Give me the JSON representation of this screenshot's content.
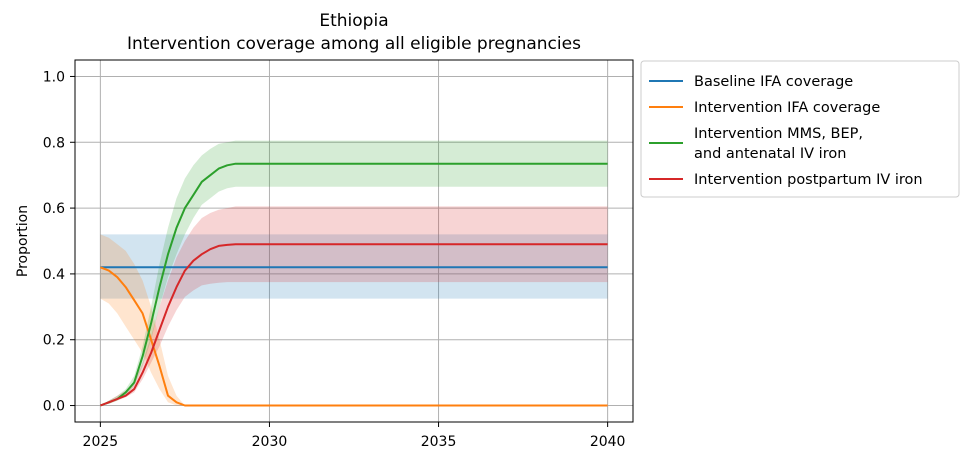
{
  "chart_data": {
    "type": "line",
    "title": "Ethiopia",
    "subtitle": "Intervention coverage among all eligible pregnancies",
    "xlabel": "",
    "ylabel": "Proportion",
    "xlim": [
      2024.25,
      2040.75
    ],
    "ylim": [
      -0.05,
      1.05
    ],
    "xticks": [
      2025,
      2030,
      2035,
      2040
    ],
    "yticks": [
      0.0,
      0.2,
      0.4,
      0.6,
      0.8,
      1.0
    ],
    "xtick_labels": [
      "2025",
      "2030",
      "2035",
      "2040"
    ],
    "ytick_labels": [
      "0.0",
      "0.2",
      "0.4",
      "0.6",
      "0.8",
      "1.0"
    ],
    "grid": true,
    "legend_position": "outside-right-top",
    "series": [
      {
        "name": "Baseline IFA coverage",
        "legend_lines": [
          "Baseline IFA coverage"
        ],
        "color": "#1f77b4",
        "x": [
          2025,
          2040
        ],
        "y": [
          0.42,
          0.42
        ],
        "lower": [
          0.325,
          0.325
        ],
        "upper": [
          0.52,
          0.52
        ]
      },
      {
        "name": "Intervention IFA coverage",
        "legend_lines": [
          "Intervention IFA coverage"
        ],
        "color": "#ff7f0e",
        "x": [
          2025,
          2025.25,
          2025.5,
          2025.75,
          2026,
          2026.25,
          2026.5,
          2026.75,
          2027,
          2027.25,
          2027.5,
          2040
        ],
        "y": [
          0.42,
          0.41,
          0.39,
          0.36,
          0.32,
          0.28,
          0.2,
          0.12,
          0.03,
          0.01,
          0.0,
          0.0
        ],
        "lower": [
          0.325,
          0.31,
          0.28,
          0.24,
          0.2,
          0.16,
          0.1,
          0.05,
          0.01,
          0.0,
          0.0,
          0.0
        ],
        "upper": [
          0.52,
          0.51,
          0.49,
          0.47,
          0.43,
          0.38,
          0.3,
          0.2,
          0.09,
          0.03,
          0.0,
          0.0
        ]
      },
      {
        "name": "Intervention MMS, BEP, and antenatal IV iron",
        "legend_lines": [
          "Intervention MMS, BEP,",
          "and antenatal IV iron"
        ],
        "color": "#2ca02c",
        "x": [
          2025,
          2025.25,
          2025.5,
          2025.75,
          2026,
          2026.25,
          2026.5,
          2026.75,
          2027,
          2027.25,
          2027.5,
          2027.75,
          2028,
          2028.25,
          2028.5,
          2028.75,
          2029,
          2040
        ],
        "y": [
          0.0,
          0.01,
          0.02,
          0.04,
          0.07,
          0.15,
          0.25,
          0.36,
          0.46,
          0.54,
          0.6,
          0.64,
          0.68,
          0.7,
          0.72,
          0.73,
          0.735,
          0.735
        ],
        "lower": [
          0.0,
          0.005,
          0.015,
          0.03,
          0.06,
          0.12,
          0.2,
          0.3,
          0.39,
          0.46,
          0.52,
          0.57,
          0.61,
          0.63,
          0.65,
          0.66,
          0.665,
          0.665
        ],
        "upper": [
          0.0,
          0.015,
          0.03,
          0.05,
          0.09,
          0.18,
          0.3,
          0.43,
          0.54,
          0.63,
          0.69,
          0.73,
          0.76,
          0.78,
          0.795,
          0.8,
          0.805,
          0.805
        ]
      },
      {
        "name": "Intervention postpartum IV iron",
        "legend_lines": [
          "Intervention postpartum IV iron"
        ],
        "color": "#d62728",
        "x": [
          2025,
          2025.25,
          2025.5,
          2025.75,
          2026,
          2026.25,
          2026.5,
          2026.75,
          2027,
          2027.25,
          2027.5,
          2027.75,
          2028,
          2028.25,
          2028.5,
          2028.75,
          2029,
          2040
        ],
        "y": [
          0.0,
          0.01,
          0.02,
          0.03,
          0.05,
          0.1,
          0.16,
          0.23,
          0.3,
          0.36,
          0.41,
          0.44,
          0.46,
          0.475,
          0.485,
          0.488,
          0.49,
          0.49
        ],
        "lower": [
          0.0,
          0.005,
          0.015,
          0.025,
          0.04,
          0.08,
          0.13,
          0.18,
          0.24,
          0.29,
          0.33,
          0.35,
          0.365,
          0.37,
          0.373,
          0.375,
          0.375,
          0.375
        ],
        "upper": [
          0.0,
          0.015,
          0.03,
          0.045,
          0.07,
          0.13,
          0.21,
          0.3,
          0.38,
          0.45,
          0.5,
          0.54,
          0.57,
          0.585,
          0.595,
          0.6,
          0.605,
          0.605
        ]
      }
    ]
  }
}
